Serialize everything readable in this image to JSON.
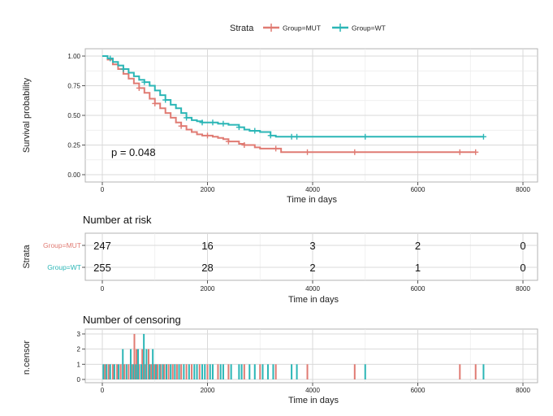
{
  "colors": {
    "mut": "#E07B73",
    "wt": "#2BB6B6",
    "grid": "#D9D9D9",
    "panel_border": "#B3B3B3",
    "axis_text": "#222222"
  },
  "legend": {
    "title": "Strata",
    "entries": [
      {
        "label": "Group=MUT",
        "color": "#E07B73"
      },
      {
        "label": "Group=WT",
        "color": "#2BB6B6"
      }
    ]
  },
  "chart_data": [
    {
      "type": "line",
      "subtype": "kaplan-meier",
      "title": "",
      "xlabel": "Time in days",
      "ylabel": "Survival probability",
      "xlim": [
        -300,
        8150
      ],
      "ylim": [
        -0.02,
        1.05
      ],
      "xticks": [
        0,
        2000,
        4000,
        6000,
        8000
      ],
      "yticks": [
        0.0,
        0.25,
        0.5,
        0.75,
        1.0
      ],
      "ytick_labels": [
        "0.00",
        "0.25",
        "0.50",
        "0.75",
        "1.00"
      ],
      "annotation": "p = 0.048",
      "grid": true,
      "series": [
        {
          "name": "Group=MUT",
          "x": [
            0,
            100,
            200,
            300,
            400,
            500,
            600,
            700,
            800,
            900,
            1000,
            1100,
            1200,
            1300,
            1400,
            1500,
            1600,
            1700,
            1800,
            1900,
            2000,
            2100,
            2200,
            2300,
            2400,
            2600,
            2700,
            2900,
            3000,
            3300,
            3400,
            7100
          ],
          "y": [
            1.0,
            0.97,
            0.93,
            0.89,
            0.85,
            0.81,
            0.77,
            0.73,
            0.69,
            0.64,
            0.6,
            0.56,
            0.52,
            0.48,
            0.44,
            0.41,
            0.38,
            0.36,
            0.34,
            0.33,
            0.33,
            0.32,
            0.31,
            0.3,
            0.28,
            0.26,
            0.25,
            0.23,
            0.22,
            0.22,
            0.19,
            0.19
          ],
          "censor_times": [
            700,
            1000,
            1500,
            2000,
            2400,
            2700,
            3300,
            3900,
            4800,
            6800,
            7100
          ]
        },
        {
          "name": "Group=WT",
          "x": [
            0,
            100,
            200,
            300,
            400,
            500,
            600,
            700,
            800,
            900,
            1000,
            1100,
            1200,
            1300,
            1400,
            1500,
            1600,
            1700,
            1800,
            1900,
            2000,
            2200,
            2400,
            2500,
            2600,
            2700,
            2800,
            3000,
            3200,
            3300,
            7250
          ],
          "y": [
            1.0,
            0.98,
            0.95,
            0.92,
            0.89,
            0.86,
            0.83,
            0.8,
            0.78,
            0.75,
            0.71,
            0.67,
            0.63,
            0.59,
            0.56,
            0.52,
            0.48,
            0.46,
            0.45,
            0.44,
            0.44,
            0.43,
            0.42,
            0.42,
            0.4,
            0.38,
            0.37,
            0.36,
            0.33,
            0.32,
            0.32
          ],
          "censor_times": [
            150,
            400,
            800,
            1200,
            1600,
            1900,
            2100,
            2300,
            2600,
            2900,
            3200,
            3600,
            3700,
            5000,
            7250
          ]
        }
      ]
    },
    {
      "type": "table",
      "title": "Number at risk",
      "xlabel": "Time in days",
      "ylabel": "Strata",
      "xticks": [
        0,
        2000,
        4000,
        6000,
        8000
      ],
      "rows": [
        {
          "name": "Group=MUT",
          "color": "#E07B73",
          "values": [
            "247",
            "16",
            "3",
            "2",
            "0"
          ]
        },
        {
          "name": "Group=WT",
          "color": "#2BB6B6",
          "values": [
            "255",
            "28",
            "2",
            "1",
            "0"
          ]
        }
      ]
    },
    {
      "type": "bar",
      "title": "Number of censoring",
      "xlabel": "Time in days",
      "ylabel": "n.censor",
      "xticks": [
        0,
        2000,
        4000,
        6000,
        8000
      ],
      "yticks": [
        0,
        1,
        2,
        3
      ],
      "ylim": [
        0,
        3
      ],
      "series": [
        {
          "name": "Group=MUT",
          "color": "#E07B73",
          "events": [
            [
              50,
              1
            ],
            [
              120,
              1
            ],
            [
              200,
              1
            ],
            [
              280,
              1
            ],
            [
              350,
              1
            ],
            [
              420,
              1
            ],
            [
              500,
              1
            ],
            [
              560,
              1
            ],
            [
              610,
              3
            ],
            [
              650,
              2
            ],
            [
              700,
              1
            ],
            [
              760,
              2
            ],
            [
              820,
              1
            ],
            [
              880,
              2
            ],
            [
              930,
              1
            ],
            [
              990,
              1
            ],
            [
              1050,
              1
            ],
            [
              1110,
              1
            ],
            [
              1180,
              1
            ],
            [
              1260,
              1
            ],
            [
              1340,
              1
            ],
            [
              1420,
              1
            ],
            [
              1500,
              1
            ],
            [
              1600,
              1
            ],
            [
              1700,
              1
            ],
            [
              1850,
              1
            ],
            [
              2000,
              1
            ],
            [
              2200,
              1
            ],
            [
              2400,
              1
            ],
            [
              2700,
              1
            ],
            [
              3000,
              1
            ],
            [
              3300,
              1
            ],
            [
              3900,
              1
            ],
            [
              4800,
              1
            ],
            [
              6800,
              1
            ],
            [
              7100,
              1
            ]
          ]
        },
        {
          "name": "Group=WT",
          "color": "#2BB6B6",
          "events": [
            [
              20,
              1
            ],
            [
              80,
              1
            ],
            [
              150,
              1
            ],
            [
              230,
              1
            ],
            [
              310,
              1
            ],
            [
              390,
              2
            ],
            [
              460,
              1
            ],
            [
              540,
              2
            ],
            [
              590,
              1
            ],
            [
              640,
              1
            ],
            [
              680,
              2
            ],
            [
              740,
              1
            ],
            [
              790,
              3
            ],
            [
              840,
              2
            ],
            [
              900,
              1
            ],
            [
              960,
              2
            ],
            [
              1020,
              1
            ],
            [
              1090,
              1
            ],
            [
              1150,
              1
            ],
            [
              1220,
              1
            ],
            [
              1300,
              1
            ],
            [
              1380,
              1
            ],
            [
              1460,
              1
            ],
            [
              1550,
              1
            ],
            [
              1650,
              1
            ],
            [
              1750,
              1
            ],
            [
              1800,
              1
            ],
            [
              1900,
              1
            ],
            [
              1950,
              1
            ],
            [
              2050,
              1
            ],
            [
              2100,
              1
            ],
            [
              2250,
              1
            ],
            [
              2300,
              1
            ],
            [
              2450,
              1
            ],
            [
              2600,
              1
            ],
            [
              2650,
              1
            ],
            [
              2800,
              1
            ],
            [
              2900,
              1
            ],
            [
              3050,
              1
            ],
            [
              3150,
              1
            ],
            [
              3250,
              1
            ],
            [
              3600,
              1
            ],
            [
              3700,
              1
            ],
            [
              5000,
              1
            ],
            [
              7250,
              1
            ]
          ]
        }
      ]
    }
  ]
}
